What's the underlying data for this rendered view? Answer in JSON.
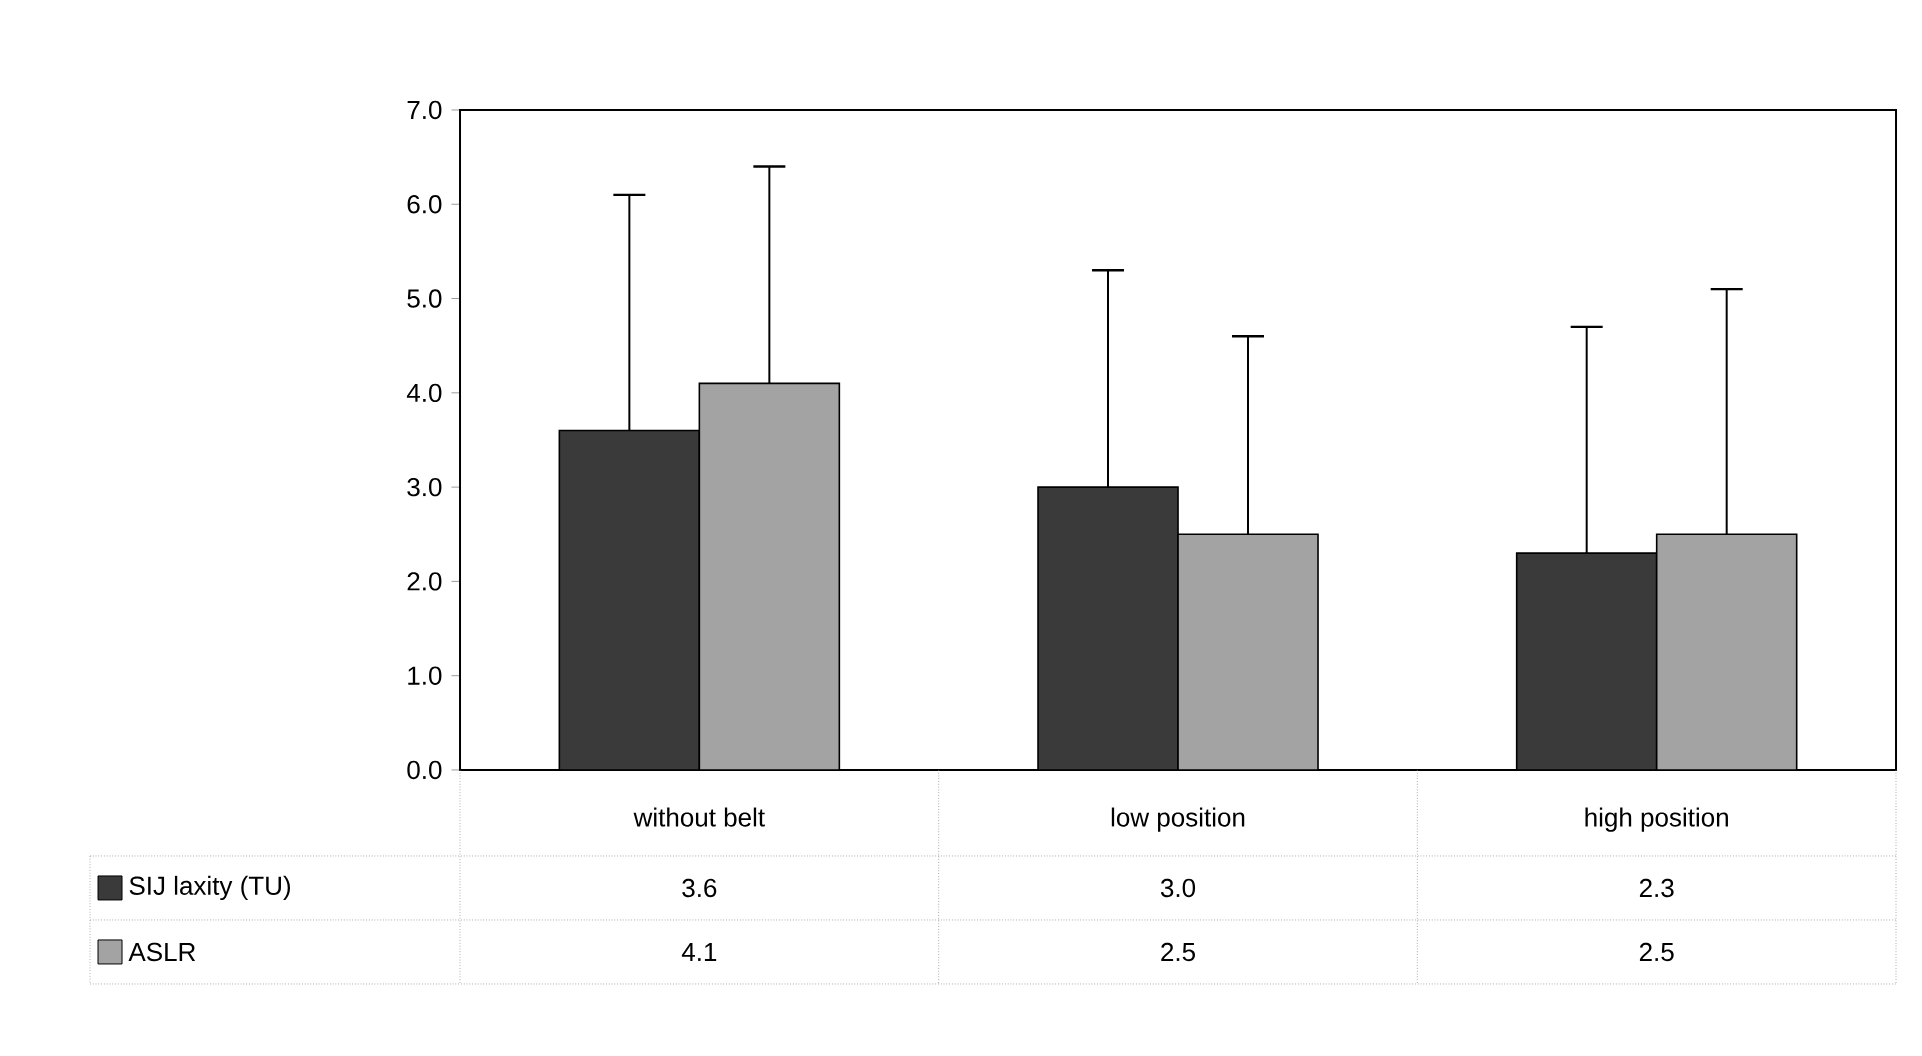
{
  "chart_data": {
    "type": "bar",
    "categories": [
      "without belt",
      "low position",
      "high position"
    ],
    "series": [
      {
        "name": "SIJ laxity (TU)",
        "color": "#3a3a3a",
        "values": [
          3.6,
          3.0,
          2.3
        ],
        "value_labels": [
          "3.6",
          "3.0",
          "2.3"
        ],
        "errors": [
          [
            3.6,
            6.1
          ],
          [
            3.0,
            5.3
          ],
          [
            2.3,
            4.7
          ]
        ]
      },
      {
        "name": "ASLR",
        "color": "#a3a3a3",
        "values": [
          4.1,
          2.5,
          2.5
        ],
        "value_labels": [
          "4.1",
          "2.5",
          "2.5"
        ],
        "errors": [
          [
            4.1,
            6.4
          ],
          [
            2.5,
            4.6
          ],
          [
            2.5,
            5.1
          ]
        ]
      }
    ],
    "ylim": [
      0,
      7
    ],
    "yticks": [
      {
        "value": 0,
        "label": "0.0"
      },
      {
        "value": 1,
        "label": "1.0"
      },
      {
        "value": 2,
        "label": "2.0"
      },
      {
        "value": 3,
        "label": "3.0"
      },
      {
        "value": 4,
        "label": "4.0"
      },
      {
        "value": 5,
        "label": "5.0"
      },
      {
        "value": 6,
        "label": "6.0"
      },
      {
        "value": 7,
        "label": "7.0"
      }
    ],
    "legend": "bottom",
    "grid": false
  }
}
